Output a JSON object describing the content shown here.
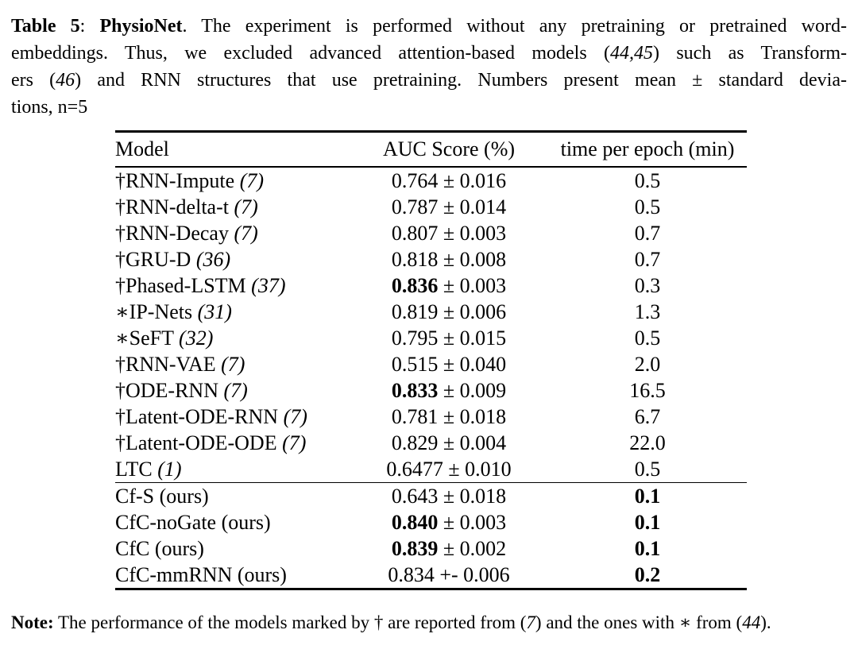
{
  "caption": {
    "lines": [
      [
        {
          "t": "Table 5",
          "b": 1
        },
        {
          "t": ": "
        },
        {
          "t": "PhysioNet",
          "b": 1
        },
        {
          "t": ". The experiment is performed without any pretraining or pretrained word-"
        }
      ],
      [
        {
          "t": "embeddings. Thus, we excluded advanced attention-based models ("
        },
        {
          "t": "44,45",
          "i": 1
        },
        {
          "t": ") such as Transform-"
        }
      ],
      [
        {
          "t": "ers ("
        },
        {
          "t": "46",
          "i": 1
        },
        {
          "t": ") and RNN structures that use pretraining. Numbers present mean ± standard devia-"
        }
      ],
      [
        {
          "t": "tions, n=5"
        }
      ]
    ]
  },
  "table": {
    "columns": [
      "Model",
      "AUC Score (%)",
      "time per epoch (min)"
    ],
    "rows": [
      {
        "prefix": "†",
        "model": "RNN-Impute",
        "ref": "7",
        "ref_italic": true,
        "auc_mean": "0.764",
        "pm": "±",
        "auc_std": "0.016",
        "auc_bold": false,
        "time": "0.5",
        "time_bold": false,
        "rule_above": false
      },
      {
        "prefix": "†",
        "model": "RNN-delta-t",
        "ref": "7",
        "ref_italic": true,
        "auc_mean": "0.787",
        "pm": "±",
        "auc_std": "0.014",
        "auc_bold": false,
        "time": "0.5",
        "time_bold": false,
        "rule_above": false
      },
      {
        "prefix": "†",
        "model": "RNN-Decay",
        "ref": "7",
        "ref_italic": true,
        "auc_mean": "0.807",
        "pm": "±",
        "auc_std": "0.003",
        "auc_bold": false,
        "time": "0.7",
        "time_bold": false,
        "rule_above": false
      },
      {
        "prefix": "†",
        "model": "GRU-D",
        "ref": "36",
        "ref_italic": true,
        "auc_mean": "0.818",
        "pm": "±",
        "auc_std": "0.008",
        "auc_bold": false,
        "time": "0.7",
        "time_bold": false,
        "rule_above": false
      },
      {
        "prefix": "†",
        "model": "Phased-LSTM",
        "ref": "37",
        "ref_italic": true,
        "auc_mean": "0.836",
        "pm": "±",
        "auc_std": "0.003",
        "auc_bold": true,
        "time": "0.3",
        "time_bold": false,
        "rule_above": false
      },
      {
        "prefix": "∗",
        "model": "IP-Nets",
        "ref": "31",
        "ref_italic": true,
        "auc_mean": "0.819",
        "pm": "±",
        "auc_std": "0.006",
        "auc_bold": false,
        "time": "1.3",
        "time_bold": false,
        "rule_above": false
      },
      {
        "prefix": "∗",
        "model": "SeFT",
        "ref": "32",
        "ref_italic": true,
        "auc_mean": "0.795",
        "pm": "±",
        "auc_std": "0.015",
        "auc_bold": false,
        "time": "0.5",
        "time_bold": false,
        "rule_above": false
      },
      {
        "prefix": "†",
        "model": "RNN-VAE",
        "ref": "7",
        "ref_italic": true,
        "auc_mean": "0.515",
        "pm": "±",
        "auc_std": "0.040",
        "auc_bold": false,
        "time": "2.0",
        "time_bold": false,
        "rule_above": false
      },
      {
        "prefix": "†",
        "model": "ODE-RNN",
        "ref": "7",
        "ref_italic": true,
        "auc_mean": "0.833",
        "pm": "±",
        "auc_std": "0.009",
        "auc_bold": true,
        "time": "16.5",
        "time_bold": false,
        "rule_above": false
      },
      {
        "prefix": "†",
        "model": "Latent-ODE-RNN",
        "ref": "7",
        "ref_italic": true,
        "auc_mean": "0.781",
        "pm": "±",
        "auc_std": "0.018",
        "auc_bold": false,
        "time": "6.7",
        "time_bold": false,
        "rule_above": false
      },
      {
        "prefix": "†",
        "model": "Latent-ODE-ODE",
        "ref": "7",
        "ref_italic": true,
        "auc_mean": "0.829",
        "pm": "±",
        "auc_std": "0.004",
        "auc_bold": false,
        "time": "22.0",
        "time_bold": false,
        "rule_above": false
      },
      {
        "prefix": "",
        "model": "LTC",
        "ref": "1",
        "ref_italic": true,
        "auc_mean": "0.6477",
        "pm": "±",
        "auc_std": "0.010",
        "auc_bold": false,
        "time": "0.5",
        "time_bold": false,
        "rule_above": false
      },
      {
        "prefix": "",
        "model": "Cf-S",
        "ref": "ours",
        "ref_italic": false,
        "auc_mean": "0.643",
        "pm": "±",
        "auc_std": "0.018",
        "auc_bold": false,
        "time": "0.1",
        "time_bold": true,
        "rule_above": true
      },
      {
        "prefix": "",
        "model": "CfC-noGate",
        "ref": "ours",
        "ref_italic": false,
        "auc_mean": "0.840",
        "pm": "±",
        "auc_std": "0.003",
        "auc_bold": true,
        "time": "0.1",
        "time_bold": true,
        "rule_above": false
      },
      {
        "prefix": "",
        "model": "CfC",
        "ref": "ours",
        "ref_italic": false,
        "auc_mean": "0.839",
        "pm": "±",
        "auc_std": "0.002",
        "auc_bold": true,
        "time": "0.1",
        "time_bold": true,
        "rule_above": false
      },
      {
        "prefix": "",
        "model": "CfC-mmRNN",
        "ref": "ours",
        "ref_italic": false,
        "auc_mean": "0.834",
        "pm": "+-",
        "auc_std": "0.006",
        "auc_bold": false,
        "time": "0.2",
        "time_bold": true,
        "rule_above": false
      }
    ]
  },
  "note": {
    "segments": [
      {
        "t": "Note:",
        "b": 1
      },
      {
        "t": " The performance of the models marked by † are reported from ("
      },
      {
        "t": "7",
        "i": 1
      },
      {
        "t": ") and the ones with ∗ from ("
      },
      {
        "t": "44",
        "i": 1
      },
      {
        "t": ")."
      }
    ]
  }
}
